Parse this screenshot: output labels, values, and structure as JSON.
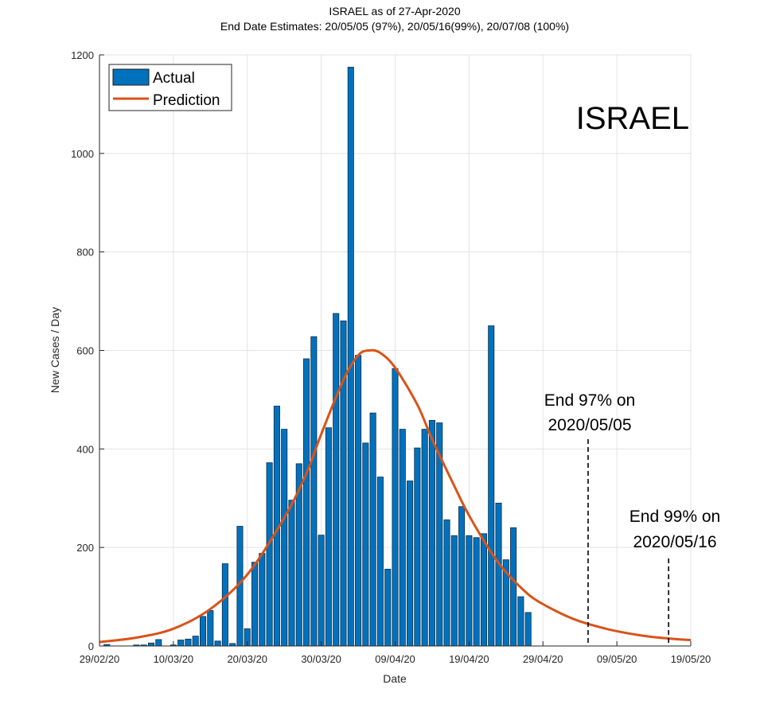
{
  "chart_data": {
    "type": "bar",
    "title": "ISRAEL as of 27-Apr-2020",
    "subtitle": "End Date Estimates: 20/05/05 (97%), 20/05/16(99%), 20/07/08 (100%)",
    "xlabel": "Date",
    "ylabel": "New Cases / Day",
    "big_label": "ISRAEL",
    "ylim": [
      0,
      1200
    ],
    "xlim_days": [
      0,
      80
    ],
    "x_origin": "29/02/20",
    "grid": true,
    "legend_position": "top-left",
    "yticks": [
      0,
      200,
      400,
      600,
      800,
      1000,
      1200
    ],
    "xticks": [
      {
        "day": 0,
        "label": "29/02/20"
      },
      {
        "day": 10,
        "label": "10/03/20"
      },
      {
        "day": 20,
        "label": "20/03/20"
      },
      {
        "day": 30,
        "label": "30/03/20"
      },
      {
        "day": 40,
        "label": "09/04/20"
      },
      {
        "day": 50,
        "label": "19/04/20"
      },
      {
        "day": 60,
        "label": "29/04/20"
      },
      {
        "day": 70,
        "label": "09/05/20"
      },
      {
        "day": 80,
        "label": "19/05/20"
      }
    ],
    "series": [
      {
        "name": "Actual",
        "kind": "bar",
        "color": "#0072BD",
        "days": [
          1,
          2,
          3,
          4,
          5,
          6,
          7,
          8,
          9,
          10,
          11,
          12,
          13,
          14,
          15,
          16,
          17,
          18,
          19,
          20,
          21,
          22,
          23,
          24,
          25,
          26,
          27,
          28,
          29,
          30,
          31,
          32,
          33,
          34,
          35,
          36,
          37,
          38,
          39,
          40,
          41,
          42,
          43,
          44,
          45,
          46,
          47,
          48,
          49,
          50,
          51,
          52,
          53,
          54,
          55,
          56,
          57,
          58,
          59
        ],
        "values": [
          3,
          0,
          0,
          0,
          2,
          2,
          6,
          13,
          0,
          2,
          12,
          14,
          20,
          60,
          72,
          10,
          167,
          5,
          243,
          35,
          170,
          188,
          372,
          487,
          440,
          296,
          370,
          583,
          628,
          225,
          443,
          675,
          660,
          1175,
          590,
          412,
          473,
          343,
          156,
          563,
          440,
          335,
          402,
          440,
          458,
          453,
          256,
          224,
          283,
          224,
          220,
          228,
          650,
          290,
          175,
          240,
          100,
          68,
          0
        ]
      },
      {
        "name": "Prediction",
        "kind": "line",
        "color": "#D95319",
        "days": [
          0,
          5,
          10,
          15,
          20,
          25,
          28,
          30,
          33,
          35,
          36.5,
          38,
          40,
          43,
          45,
          48,
          50,
          53,
          55,
          58,
          60,
          63,
          65,
          68,
          70,
          73,
          75,
          78,
          80
        ],
        "values": [
          8,
          17,
          35,
          75,
          145,
          260,
          350,
          430,
          540,
          590,
          600,
          595,
          565,
          490,
          420,
          325,
          265,
          190,
          150,
          105,
          85,
          62,
          50,
          37,
          30,
          22,
          18,
          14,
          12
        ]
      }
    ],
    "annotations": [
      {
        "line1": "End 97% on",
        "line2": "2020/05/05",
        "day": 66
      },
      {
        "line1": "End 99% on",
        "line2": "2020/05/16",
        "day": 77
      }
    ]
  }
}
